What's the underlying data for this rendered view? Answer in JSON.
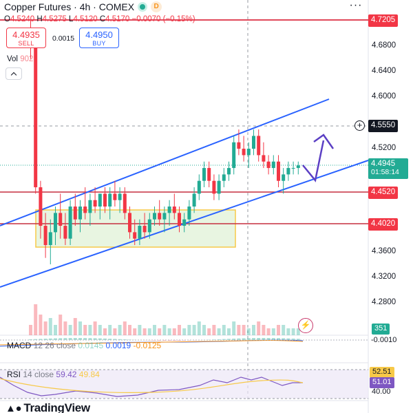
{
  "header": {
    "symbol_title": "Copper Futures · 4h · COMEX",
    "d_badge": "D",
    "ohlc": {
      "o_label": "O",
      "o": "4.5240",
      "h_label": "H",
      "h": "4.5275",
      "l_label": "L",
      "l": "4.5120",
      "c_label": "C",
      "c": "4.5170",
      "change": "−0.0070 (−0.15%)"
    },
    "more_icon": "more-dots-icon"
  },
  "trade": {
    "sell_price": "4.4935",
    "sell_label": "SELL",
    "spread": "0.0015",
    "buy_price": "4.4950",
    "buy_label": "BUY"
  },
  "volume": {
    "label": "Vol",
    "value": "902",
    "current": "351"
  },
  "price_axis": {
    "labels": [
      "4.6800",
      "4.6400",
      "4.6000",
      "4.5200",
      "4.3600",
      "4.3200",
      "4.2800"
    ],
    "tags": {
      "top_resistance": "4.7205",
      "crosshair": "4.5550",
      "current_price": "4.4945",
      "countdown": "01:58:14",
      "support_1": "4.4520",
      "support_2": "4.4020"
    }
  },
  "macd": {
    "name": "MACD",
    "params": "12 26 close",
    "v1": "0.0145",
    "v2": "0.0019",
    "v3": "-0.0125",
    "axis_tag": "-0.0010"
  },
  "rsi": {
    "name": "RSI",
    "params": "14 close",
    "v1": "59.42",
    "v2": "49.84",
    "tag_yellow": "52.51",
    "tag_purple": "51.01",
    "axis_label": "40.00"
  },
  "branding": {
    "logo_text": "TradingView"
  },
  "colors": {
    "up": "#22ab94",
    "down": "#f23645",
    "line_blue": "#2962ff",
    "zone_fill": "#e8f5e1",
    "zone_border": "#f7c948",
    "arrow": "#5b3fc4"
  },
  "chart_data": {
    "type": "candlestick",
    "symbol": "Copper Futures",
    "timeframe": "4h",
    "y_range": [
      4.27,
      4.73
    ],
    "horizontal_levels": [
      4.7205,
      4.555,
      4.452,
      4.402
    ],
    "candles": [
      [
        4.7,
        4.72,
        4.66,
        4.68
      ],
      [
        4.68,
        4.69,
        4.45,
        4.46
      ],
      [
        4.46,
        4.47,
        4.38,
        4.4
      ],
      [
        4.4,
        4.42,
        4.35,
        4.37
      ],
      [
        4.37,
        4.41,
        4.34,
        4.39
      ],
      [
        4.39,
        4.43,
        4.37,
        4.42
      ],
      [
        4.42,
        4.45,
        4.38,
        4.4
      ],
      [
        4.4,
        4.42,
        4.37,
        4.38
      ],
      [
        4.38,
        4.44,
        4.37,
        4.43
      ],
      [
        4.43,
        4.45,
        4.4,
        4.41
      ],
      [
        4.41,
        4.44,
        4.39,
        4.43
      ],
      [
        4.43,
        4.46,
        4.41,
        4.42
      ],
      [
        4.42,
        4.45,
        4.4,
        4.44
      ],
      [
        4.44,
        4.46,
        4.42,
        4.43
      ],
      [
        4.43,
        4.45,
        4.41,
        4.45
      ],
      [
        4.45,
        4.46,
        4.42,
        4.43
      ],
      [
        4.43,
        4.46,
        4.41,
        4.45
      ],
      [
        4.45,
        4.47,
        4.43,
        4.44
      ],
      [
        4.44,
        4.46,
        4.42,
        4.45
      ],
      [
        4.45,
        4.46,
        4.41,
        4.42
      ],
      [
        4.42,
        4.43,
        4.38,
        4.39
      ],
      [
        4.39,
        4.41,
        4.37,
        4.38
      ],
      [
        4.38,
        4.41,
        4.37,
        4.4
      ],
      [
        4.4,
        4.42,
        4.38,
        4.39
      ],
      [
        4.39,
        4.42,
        4.38,
        4.41
      ],
      [
        4.41,
        4.43,
        4.4,
        4.42
      ],
      [
        4.42,
        4.44,
        4.4,
        4.41
      ],
      [
        4.41,
        4.43,
        4.39,
        4.42
      ],
      [
        4.42,
        4.44,
        4.4,
        4.43
      ],
      [
        4.43,
        4.45,
        4.41,
        4.42
      ],
      [
        4.42,
        4.43,
        4.39,
        4.4
      ],
      [
        4.4,
        4.42,
        4.39,
        4.41
      ],
      [
        4.41,
        4.44,
        4.4,
        4.43
      ],
      [
        4.43,
        4.46,
        4.42,
        4.45
      ],
      [
        4.45,
        4.48,
        4.44,
        4.47
      ],
      [
        4.47,
        4.5,
        4.46,
        4.49
      ],
      [
        4.49,
        4.5,
        4.46,
        4.47
      ],
      [
        4.47,
        4.48,
        4.44,
        4.45
      ],
      [
        4.45,
        4.48,
        4.44,
        4.47
      ],
      [
        4.47,
        4.49,
        4.46,
        4.48
      ],
      [
        4.48,
        4.5,
        4.47,
        4.49
      ],
      [
        4.49,
        4.54,
        4.48,
        4.53
      ],
      [
        4.53,
        4.55,
        4.51,
        4.52
      ],
      [
        4.52,
        4.54,
        4.5,
        4.51
      ],
      [
        4.51,
        4.53,
        4.49,
        4.52
      ],
      [
        4.52,
        4.55,
        4.51,
        4.54
      ],
      [
        4.54,
        4.55,
        4.5,
        4.51
      ],
      [
        4.51,
        4.53,
        4.49,
        4.5
      ],
      [
        4.5,
        4.51,
        4.48,
        4.49
      ],
      [
        4.49,
        4.51,
        4.48,
        4.5
      ],
      [
        4.5,
        4.51,
        4.46,
        4.47
      ],
      [
        4.47,
        4.49,
        4.45,
        4.48
      ],
      [
        4.48,
        4.5,
        4.47,
        4.49
      ],
      [
        4.49,
        4.5,
        4.48,
        4.49
      ],
      [
        4.49,
        4.5,
        4.48,
        4.494
      ]
    ],
    "volumes": [
      3,
      9,
      6,
      4,
      5,
      3,
      6,
      4,
      3,
      5,
      4,
      3,
      3,
      4,
      3,
      2,
      3,
      2,
      3,
      4,
      3,
      2,
      3,
      2,
      2,
      3,
      2,
      3,
      2,
      2,
      3,
      2,
      3,
      3,
      4,
      3,
      2,
      3,
      2,
      3,
      2,
      4,
      3,
      3,
      2,
      3,
      4,
      3,
      2,
      2,
      3,
      3,
      2,
      2,
      2
    ]
  }
}
